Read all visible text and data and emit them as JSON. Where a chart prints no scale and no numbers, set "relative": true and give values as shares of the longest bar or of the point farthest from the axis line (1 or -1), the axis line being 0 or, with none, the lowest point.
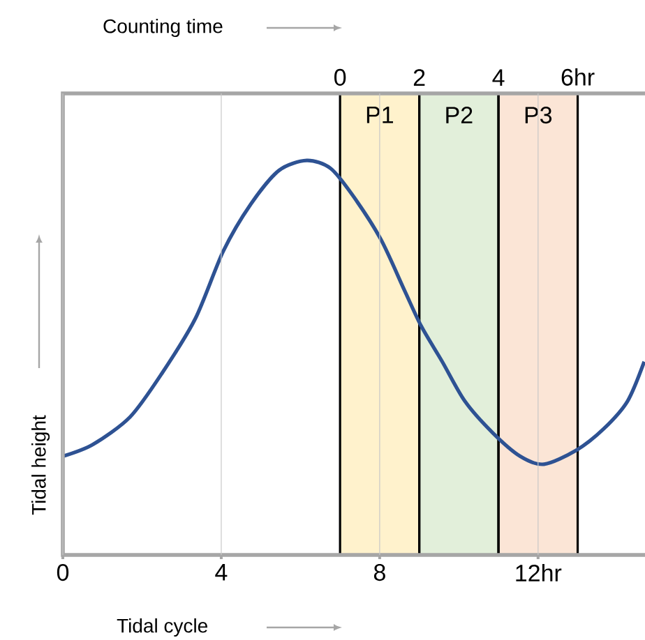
{
  "chart_data": {
    "type": "line",
    "relative": true,
    "xlabel": "Tidal cycle",
    "x2label": "Counting time",
    "ylabel": "Tidal height",
    "xlim": [
      0,
      14.7
    ],
    "xticks": [
      0,
      4,
      8,
      {
        "value": 12,
        "label": "12hr"
      }
    ],
    "x2lim": [
      -7,
      7.7
    ],
    "x2ticks": [
      0,
      2,
      4,
      {
        "value": 6,
        "label": "6hr"
      }
    ],
    "x": [
      0,
      0.76,
      1.7,
      2.5,
      3.35,
      4.05,
      4.75,
      5.46,
      6.16,
      6.76,
      7.33,
      8.03,
      8.63,
      9.05,
      9.58,
      10.15,
      10.85,
      11.55,
      12.15,
      12.96,
      13.66,
      14.26,
      14.68
    ],
    "series": [
      {
        "color": "#2e5293",
        "values": [
          0.25,
          0.28,
          0.35,
          0.46,
          0.6,
          0.77,
          0.89,
          0.975,
          1,
          0.98,
          0.91,
          0.8,
          0.67,
          0.58,
          0.49,
          0.39,
          0.31,
          0.25,
          0.23,
          0.265,
          0.32,
          0.39,
          0.49
        ]
      }
    ],
    "bands": [
      {
        "axis": "x",
        "from": 7,
        "to": 9,
        "label": "P1",
        "color": "#fff2cc"
      },
      {
        "axis": "x",
        "from": 9,
        "to": 11,
        "label": "P2",
        "color": "#e2efda"
      },
      {
        "axis": "x",
        "from": 11,
        "to": 13,
        "label": "P3",
        "color": "#fbe5d6"
      }
    ],
    "grid": "x",
    "marker": "none",
    "line_style": "solid"
  }
}
